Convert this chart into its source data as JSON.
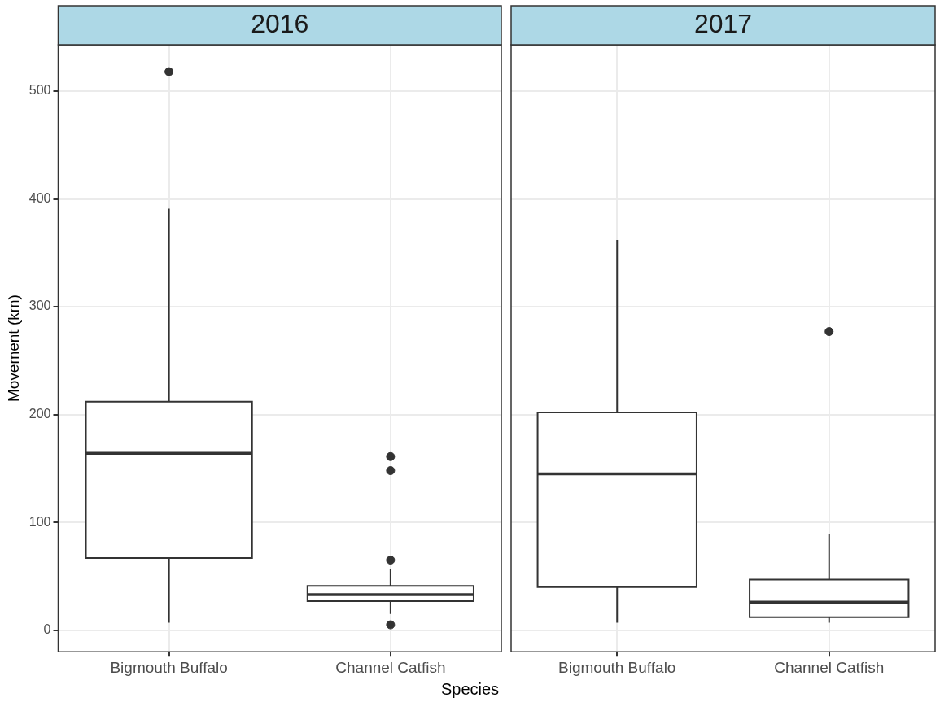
{
  "chart_data": [
    {
      "type": "box",
      "title": "2016",
      "ylabel": "Movement (km)",
      "xlabel": "Species",
      "categories": [
        "Bigmouth Buffalo",
        "Channel Catfish"
      ],
      "boxes": [
        {
          "low": 7,
          "q1": 67,
          "median": 164,
          "q3": 212,
          "high": 391,
          "outliers": [
            518
          ]
        },
        {
          "low": 15,
          "q1": 27,
          "median": 33,
          "q3": 41,
          "high": 57,
          "outliers": [
            5,
            65,
            148,
            161
          ]
        }
      ],
      "ylim": [
        -20,
        543
      ],
      "yticks": [
        0,
        100,
        200,
        300,
        400,
        500
      ],
      "grid": true
    },
    {
      "type": "box",
      "title": "2017",
      "categories": [
        "Bigmouth Buffalo",
        "Channel Catfish"
      ],
      "boxes": [
        {
          "low": 7,
          "q1": 40,
          "median": 145,
          "q3": 202,
          "high": 362
        },
        {
          "low": 7,
          "q1": 12,
          "median": 26,
          "q3": 47,
          "high": 89,
          "outliers": [
            277
          ]
        }
      ],
      "ylim": [
        -20,
        543
      ],
      "yticks": [
        0,
        100,
        200,
        300,
        400,
        500
      ],
      "grid": true,
      "tick_labels": "x"
    }
  ]
}
